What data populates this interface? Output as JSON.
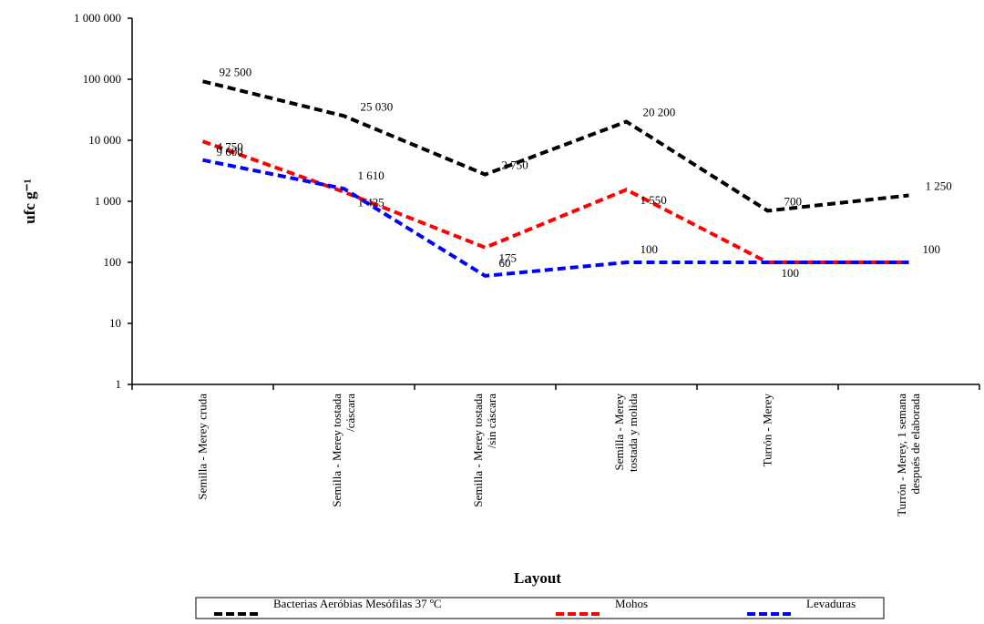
{
  "chart_data": {
    "type": "line",
    "x_label": "Layout",
    "y_label": "ufc g⁻¹",
    "log_scale": true,
    "ylim": [
      1,
      1000000
    ],
    "yticks": [
      1,
      10,
      100,
      {
        "value": 1000,
        "label": "1 000"
      },
      {
        "value": 10000,
        "label": "10 000"
      },
      {
        "value": 100000,
        "label": "100 000"
      },
      {
        "value": 1000000,
        "label": "1 000 000"
      }
    ],
    "categories": [
      [
        "Semilla - Merey cruda"
      ],
      [
        "Semilla - Merey tostada",
        "/cáscara"
      ],
      [
        "Semilla - Merey tostada",
        "/sin cáscara"
      ],
      [
        "Semilla - Merey",
        "tostada y molida"
      ],
      [
        "Turrón - Merey"
      ],
      [
        "Turrón - Merey, 1 semana",
        "después de elaborada"
      ]
    ],
    "series": [
      {
        "name": "Bacterias Aeróbias Mesófilas 37 ºC",
        "color": "#000000",
        "values": [
          92500,
          25030,
          2750,
          20200,
          700,
          1250
        ],
        "value_labels": [
          "92 500",
          "25 030",
          "2 750",
          "20 200",
          "700",
          "1 250"
        ]
      },
      {
        "name": "Mohos",
        "color": "#ff0000",
        "values": [
          9600,
          1425,
          175,
          1550,
          100,
          100
        ],
        "value_labels": [
          "9 600",
          "1 425",
          "175",
          "1 550",
          "100",
          null
        ]
      },
      {
        "name": "Levaduras",
        "color": "#0000ff",
        "values": [
          4750,
          1610,
          60,
          100,
          100,
          100
        ],
        "value_labels": [
          "4 750",
          "1 610",
          "60",
          "100",
          null,
          "100"
        ]
      }
    ]
  }
}
